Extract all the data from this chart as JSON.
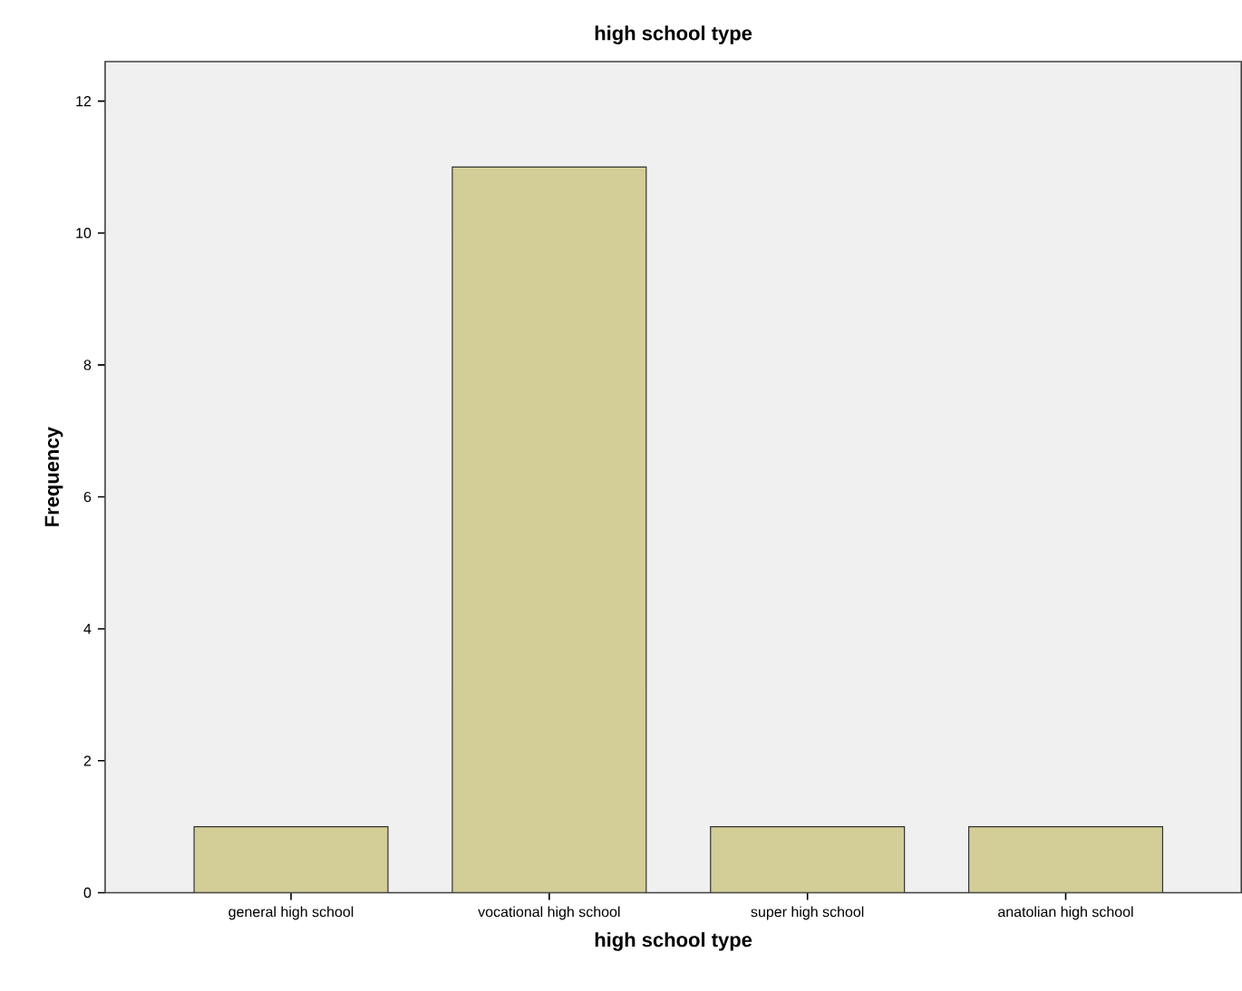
{
  "chart_data": {
    "type": "bar",
    "title": "high school type",
    "xlabel": "high school type",
    "ylabel": "Frequency",
    "categories": [
      "general high school",
      "vocational high school",
      "super high school",
      "anatolian high school"
    ],
    "values": [
      1,
      11,
      1,
      1
    ],
    "color": "#d3ce97",
    "ylim": [
      0,
      12.6
    ],
    "yticks": [
      0,
      2,
      4,
      6,
      8,
      10,
      12
    ]
  }
}
